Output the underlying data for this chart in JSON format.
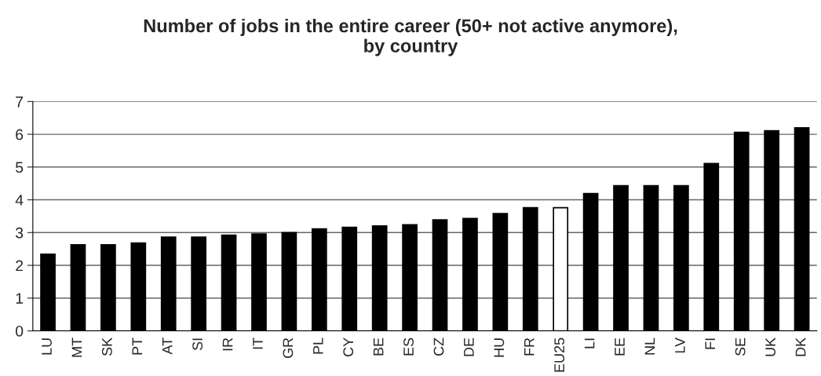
{
  "chart_data": {
    "type": "bar",
    "title": "Number of jobs in the entire career (50+ not active anymore),\nby country",
    "categories": [
      "LU",
      "MT",
      "SK",
      "PT",
      "AT",
      "SI",
      "IR",
      "IT",
      "GR",
      "PL",
      "CY",
      "BE",
      "ES",
      "CZ",
      "DE",
      "HU",
      "FR",
      "EU25",
      "LI",
      "EE",
      "NL",
      "LV",
      "FI",
      "SE",
      "UK",
      "DK"
    ],
    "values": [
      2.34,
      2.63,
      2.63,
      2.68,
      2.86,
      2.86,
      2.92,
      2.96,
      3.0,
      3.11,
      3.16,
      3.2,
      3.24,
      3.39,
      3.43,
      3.58,
      3.76,
      3.76,
      4.19,
      4.43,
      4.43,
      4.43,
      5.11,
      6.06,
      6.11,
      6.2
    ],
    "colors": [
      "#000000",
      "#000000",
      "#000000",
      "#000000",
      "#000000",
      "#000000",
      "#000000",
      "#000000",
      "#000000",
      "#000000",
      "#000000",
      "#000000",
      "#000000",
      "#000000",
      "#000000",
      "#000000",
      "#000000",
      "#ffffff",
      "#000000",
      "#000000",
      "#000000",
      "#000000",
      "#000000",
      "#000000",
      "#000000",
      "#000000"
    ],
    "ylim": [
      0,
      7
    ],
    "yticks": [
      0,
      1,
      2,
      3,
      4,
      5,
      6,
      7
    ],
    "grid": "y"
  }
}
